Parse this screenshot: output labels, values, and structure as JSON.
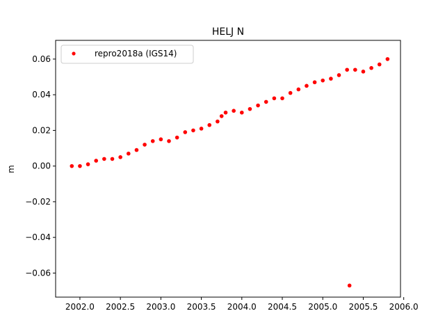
{
  "chart_data": {
    "type": "scatter",
    "title": "HELJ N",
    "xlabel": "",
    "ylabel": "m",
    "xlim": [
      2001.7,
      2005.96
    ],
    "ylim": [
      -0.0735,
      0.0705
    ],
    "x_ticks": [
      2002.0,
      2002.5,
      2003.0,
      2003.5,
      2004.0,
      2004.5,
      2005.0,
      2005.5,
      2006.0
    ],
    "x_tick_labels": [
      "2002.0",
      "2002.5",
      "2003.0",
      "2003.5",
      "2004.0",
      "2004.5",
      "2005.0",
      "2005.5",
      "2006.0"
    ],
    "y_ticks": [
      -0.06,
      -0.04,
      -0.02,
      0.0,
      0.02,
      0.04,
      0.06
    ],
    "y_tick_labels": [
      "−0.06",
      "−0.04",
      "−0.02",
      "0.00",
      "0.02",
      "0.04",
      "0.06"
    ],
    "grid": false,
    "legend_position": "top-left",
    "series": [
      {
        "name": "repro2018a (IGS14)",
        "color": "#ff0000",
        "marker": "circle",
        "x": [
          2001.9,
          2002.0,
          2002.1,
          2002.2,
          2002.3,
          2002.4,
          2002.5,
          2002.6,
          2002.7,
          2002.8,
          2002.9,
          2003.0,
          2003.1,
          2003.2,
          2003.3,
          2003.4,
          2003.5,
          2003.6,
          2003.7,
          2003.75,
          2003.8,
          2003.9,
          2004.0,
          2004.1,
          2004.2,
          2004.3,
          2004.4,
          2004.5,
          2004.6,
          2004.7,
          2004.8,
          2004.9,
          2005.0,
          2005.1,
          2005.2,
          2005.3,
          2005.4,
          2005.5,
          2005.6,
          2005.7,
          2005.8,
          2005.33
        ],
        "y": [
          0.0,
          0.0,
          0.001,
          0.003,
          0.004,
          0.004,
          0.005,
          0.007,
          0.009,
          0.012,
          0.014,
          0.015,
          0.014,
          0.016,
          0.019,
          0.02,
          0.021,
          0.023,
          0.025,
          0.028,
          0.03,
          0.031,
          0.03,
          0.032,
          0.034,
          0.036,
          0.038,
          0.038,
          0.041,
          0.043,
          0.045,
          0.047,
          0.048,
          0.049,
          0.051,
          0.054,
          0.054,
          0.053,
          0.055,
          0.057,
          0.06,
          -0.067
        ]
      }
    ]
  }
}
